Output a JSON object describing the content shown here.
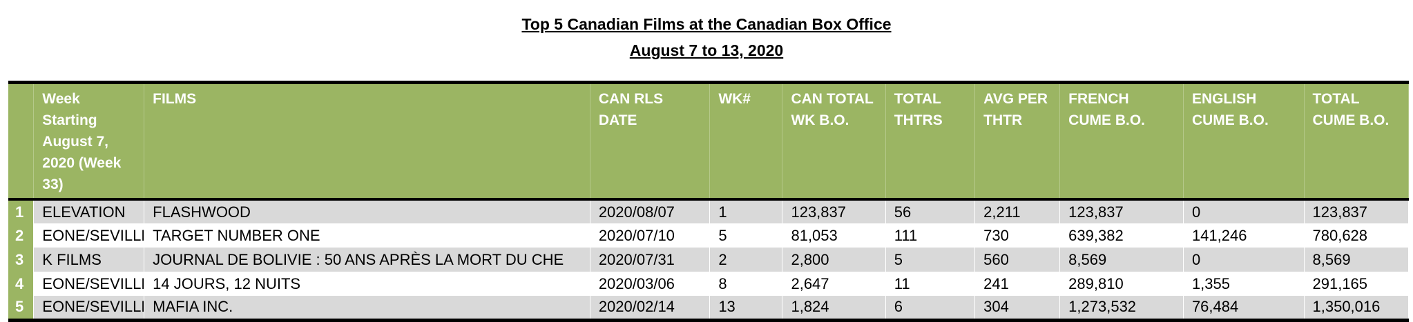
{
  "title": "Top 5 Canadian Films at the Canadian Box Office",
  "subtitle": "August 7 to 13, 2020",
  "columns": [
    "",
    "Week Starting August 7, 2020 (Week  33)",
    "FILMS",
    "CAN RLS DATE",
    "WK#",
    "CAN TOTAL WK B.O.",
    "TOTAL THTRS",
    "AVG PER THTR",
    "FRENCH CUME B.O.",
    "ENGLISH CUME B.O.",
    "TOTAL CUME B.O."
  ],
  "rows": [
    [
      "1",
      "ELEVATION",
      "FLASHWOOD",
      "2020/08/07",
      "1",
      "123,837",
      "56",
      "2,211",
      "123,837",
      "0",
      "123,837"
    ],
    [
      "2",
      "EONE/SEVILLE",
      "TARGET NUMBER ONE",
      "2020/07/10",
      "5",
      "81,053",
      "111",
      "730",
      "639,382",
      "141,246",
      "780,628"
    ],
    [
      "3",
      "K FILMS",
      "JOURNAL DE BOLIVIE : 50 ANS APRÈS LA MORT DU CHE",
      "2020/07/31",
      "2",
      "2,800",
      "5",
      "560",
      "8,569",
      "0",
      "8,569"
    ],
    [
      "4",
      "EONE/SEVILLE",
      "14 JOURS, 12 NUITS",
      "2020/03/06",
      "8",
      "2,647",
      "11",
      "241",
      "289,810",
      "1,355",
      "291,165"
    ],
    [
      "5",
      "EONE/SEVILLE",
      "MAFIA INC.",
      "2020/02/14",
      "13",
      "1,824",
      "6",
      "304",
      "1,273,532",
      "76,484",
      "1,350,016"
    ]
  ],
  "colors": {
    "header_green": "#9bb563",
    "stripe_gray": "#d9d9d9"
  }
}
